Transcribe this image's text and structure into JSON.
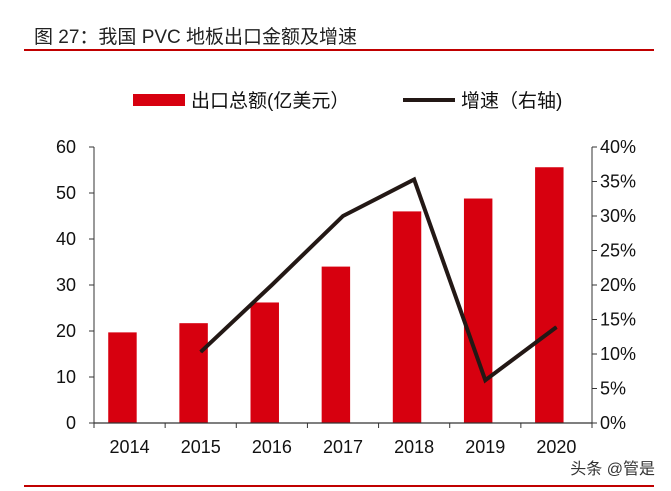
{
  "title": "图 27：我国 PVC 地板出口金额及增速",
  "watermark": "头条 @管是",
  "chart_data": {
    "type": "bar+line",
    "categories": [
      "2014",
      "2015",
      "2016",
      "2017",
      "2018",
      "2019",
      "2020"
    ],
    "series": [
      {
        "name": "出口总额(亿美元）",
        "type": "bar",
        "axis": "left",
        "color": "#d7000f",
        "values": [
          19.7,
          21.7,
          26.2,
          34.0,
          46.0,
          48.8,
          55.6
        ]
      },
      {
        "name": "增速（右轴)",
        "type": "line",
        "axis": "right",
        "color": "#231815",
        "values": [
          null,
          10.3,
          20.0,
          30.0,
          35.3,
          6.2,
          13.9
        ]
      }
    ],
    "left_axis": {
      "ylim": [
        0,
        60
      ],
      "ticks": [
        "0",
        "10",
        "20",
        "30",
        "40",
        "50",
        "60"
      ]
    },
    "right_axis": {
      "ylim": [
        0,
        40
      ],
      "unit": "%",
      "ticks": [
        "0%",
        "5%",
        "10%",
        "15%",
        "20%",
        "25%",
        "30%",
        "35%",
        "40%"
      ]
    },
    "legend_placement": "top",
    "grid": false
  }
}
